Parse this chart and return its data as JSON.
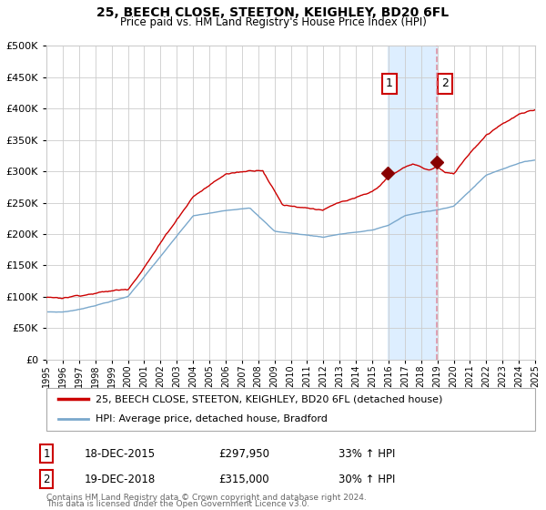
{
  "title": "25, BEECH CLOSE, STEETON, KEIGHLEY, BD20 6FL",
  "subtitle": "Price paid vs. HM Land Registry's House Price Index (HPI)",
  "legend_line1": "25, BEECH CLOSE, STEETON, KEIGHLEY, BD20 6FL (detached house)",
  "legend_line2": "HPI: Average price, detached house, Bradford",
  "footer1": "Contains HM Land Registry data © Crown copyright and database right 2024.",
  "footer2": "This data is licensed under the Open Government Licence v3.0.",
  "annotation1_label": "1",
  "annotation1_date": "18-DEC-2015",
  "annotation1_price": "£297,950",
  "annotation1_pct": "33% ↑ HPI",
  "annotation2_label": "2",
  "annotation2_date": "19-DEC-2018",
  "annotation2_price": "£315,000",
  "annotation2_pct": "30% ↑ HPI",
  "red_color": "#cc0000",
  "blue_color": "#7aa8cc",
  "shade_color": "#ddeeff",
  "dashed_color": "#dd8899",
  "background_color": "#ffffff",
  "grid_color": "#cccccc",
  "marker_color": "#880000",
  "x_start_year": 1995,
  "x_end_year": 2025,
  "sale1_year": 2015.96,
  "sale2_year": 2018.96,
  "ylim_min": 0,
  "ylim_max": 500000,
  "sale1_value": 297950,
  "sale2_value": 315000
}
